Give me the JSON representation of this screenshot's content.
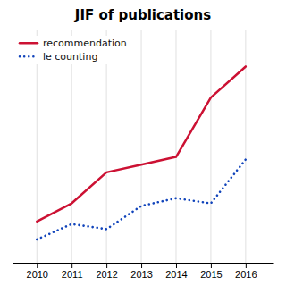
{
  "chart_data": {
    "type": "line",
    "title": "JIF of publications",
    "x": [
      2010,
      2011,
      2012,
      2013,
      2014,
      2015,
      2016
    ],
    "series": [
      {
        "name": "recommendation",
        "color": "#cc1133",
        "line_style": "solid",
        "values": [
          2.1,
          2.45,
          3.05,
          3.2,
          3.35,
          4.5,
          5.1
        ]
      },
      {
        "name": "le counting",
        "color": "#1144bb",
        "line_style": "dotted",
        "values": [
          1.75,
          2.05,
          1.95,
          2.4,
          2.55,
          2.45,
          3.3
        ]
      }
    ],
    "xlim": [
      2009.3,
      2016.8
    ],
    "xticks": [
      2010,
      2011,
      2012,
      2013,
      2014,
      2015,
      2016
    ],
    "ylim": [
      1.3,
      5.8
    ],
    "yticks": [],
    "grid": true,
    "legend": "upper left",
    "tick_labels": "x"
  }
}
